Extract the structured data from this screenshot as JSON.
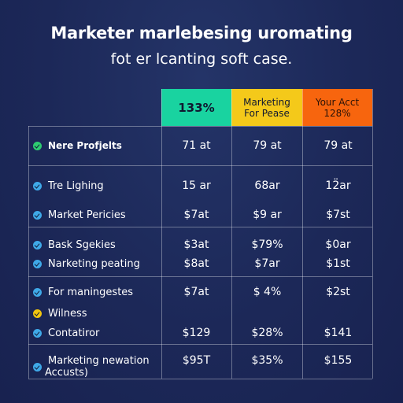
{
  "title": "Marketer marlebesing uromating",
  "subtitle": "fot er lcanting soft case.",
  "header": {
    "col1": "133%",
    "col2_line1": "Marketing",
    "col2_line2": "For Pease",
    "col3_line1": "Your Acct",
    "col3_line2": "128%"
  },
  "colors": {
    "col1": "#19d3a0",
    "col2": "#f4c91a",
    "col3": "#f7650e",
    "dot_green": "#2ecc71",
    "dot_blue": "#3fa9e8",
    "dot_yellow": "#f1c40f"
  },
  "rows": [
    {
      "label": "Nere Profjelts",
      "icon": "green-check-icon",
      "c1": "71 at",
      "c2": "79 at",
      "c3": "79 at"
    },
    {
      "label": "Tre Lighing",
      "icon": "blue-check-icon",
      "c1": "15 ar",
      "c2": "68ar",
      "c3": "12̈ar"
    },
    {
      "label": "Market Pericies",
      "icon": "blue-check-icon",
      "c1": "$7at",
      "c2": "$9 ar",
      "c3": "$7st"
    },
    {
      "label": "Bask Sgekies",
      "icon": "blue-check-icon",
      "c1": "$3at",
      "c2": "$79%",
      "c3": "$0ar"
    },
    {
      "label": "Narketing peating",
      "icon": "blue-check-icon",
      "c1": "$8at",
      "c2": "$7ar",
      "c3": "$1st"
    },
    {
      "label": "For maningestes",
      "icon": "blue-check-icon",
      "c1": "$7at",
      "c2": "$ 4%",
      "c3": "$2st"
    },
    {
      "label": "Wilness",
      "icon": "yellow-check-icon",
      "c1": "",
      "c2": "",
      "c3": ""
    },
    {
      "label": "Contatiror",
      "icon": "blue-check-icon",
      "c1": "$129",
      "c2": "$28%",
      "c3": "$141"
    },
    {
      "label": "Marketing newation",
      "label2": "Accusts)",
      "icon": "blue-check-icon",
      "c1": "$95T",
      "c2": "$35%",
      "c3": "$155"
    }
  ]
}
